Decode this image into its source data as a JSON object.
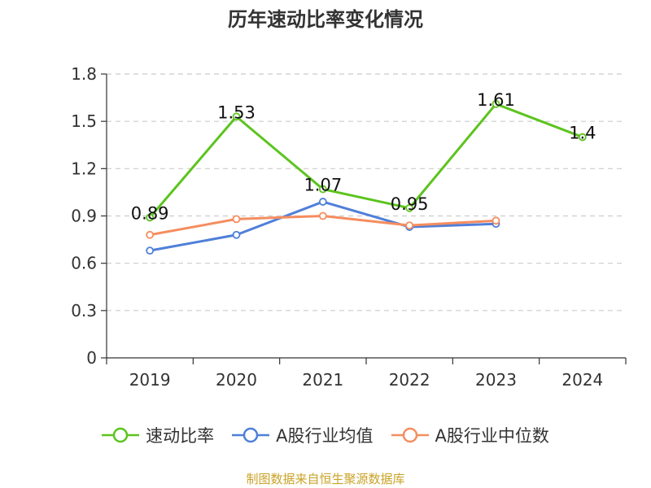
{
  "title": "历年速动比率变化情况",
  "source_note": "制图数据来自恒生聚源数据库",
  "colors": {
    "series_1": "#5cc41e",
    "series_2": "#4f7fd9",
    "series_3": "#f58d5f",
    "axis": "#333333",
    "grid": "#cccccc"
  },
  "chart_data": {
    "type": "line",
    "categories": [
      "2019",
      "2020",
      "2021",
      "2022",
      "2023",
      "2024"
    ],
    "ylim": [
      0,
      1.8
    ],
    "yticks": [
      0,
      0.3,
      0.6,
      0.9,
      1.2,
      1.5,
      1.8
    ],
    "ytick_labels": [
      "0",
      "0.3",
      "0.6",
      "0.9",
      "1.2",
      "1.5",
      "1.8"
    ],
    "grid": "horizontal-dashed",
    "legend_position": "bottom",
    "series": [
      {
        "name": "速动比率",
        "values": [
          0.89,
          1.53,
          1.07,
          0.95,
          1.61,
          1.4
        ],
        "data_labels": [
          "0.89",
          "1.53",
          "1.07",
          "0.95",
          "1.61",
          "1.4"
        ]
      },
      {
        "name": "A股行业均值",
        "values": [
          0.68,
          0.78,
          0.99,
          0.83,
          0.85,
          null
        ]
      },
      {
        "name": "A股行业中位数",
        "values": [
          0.78,
          0.88,
          0.9,
          0.84,
          0.87,
          null
        ]
      }
    ]
  }
}
